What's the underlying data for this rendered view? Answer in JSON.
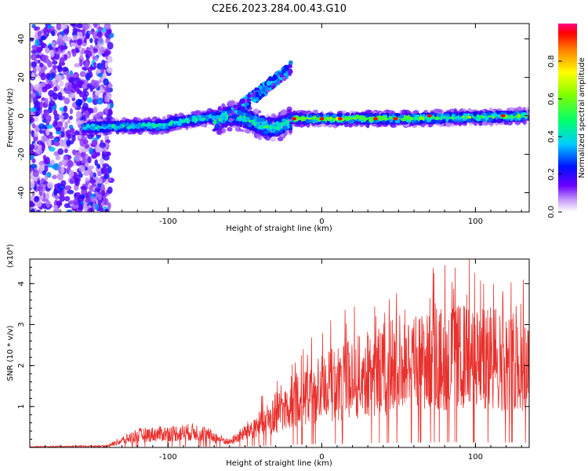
{
  "title": "C2E6.2023.284.00.43.G10",
  "colorbar": {
    "label": "Normalized spectral amplitude",
    "ticks": [
      "0.0",
      "0.2",
      "0.4",
      "0.6",
      "0.8"
    ]
  },
  "chart_data": [
    {
      "type": "heatmap",
      "name": "spectrogram",
      "xlabel": "Height of straight line (km)",
      "ylabel": "Frequency (Hz)",
      "xlim": [
        -190,
        135
      ],
      "ylim": [
        -50,
        48
      ],
      "x_ticks": [
        "-100",
        "0",
        "100"
      ],
      "y_ticks": [
        "-40",
        "-20",
        "0",
        "20",
        "40"
      ],
      "colormap_range": [
        0,
        1
      ],
      "features": [
        {
          "description": "broadband noise region",
          "x_range": [
            -190,
            -137
          ],
          "y_range": [
            -50,
            48
          ],
          "amplitude": 0.25
        },
        {
          "description": "main signal band",
          "x_range": [
            -155,
            135
          ],
          "center_frequency": [
            -6,
            0
          ],
          "amplitude_peak": 1.0
        },
        {
          "description": "rising branch",
          "x_range": [
            -60,
            -20
          ],
          "y_range": [
            0,
            25
          ],
          "amplitude": 0.3
        }
      ]
    },
    {
      "type": "line",
      "name": "snr",
      "xlabel": "Height of straight line (km)",
      "ylabel": "SNR (10 * v/v)",
      "yscale_label": "(x10⁴)",
      "xlim": [
        -190,
        135
      ],
      "ylim": [
        0,
        4.6
      ],
      "x_ticks": [
        "-100",
        "0",
        "100"
      ],
      "y_ticks": [
        "1",
        "2",
        "3",
        "4"
      ],
      "color": "#e8302c",
      "envelope": [
        {
          "x": -190,
          "y": 0.02
        },
        {
          "x": -140,
          "y": 0.04
        },
        {
          "x": -120,
          "y": 0.35
        },
        {
          "x": -80,
          "y": 0.45
        },
        {
          "x": -60,
          "y": 0.15
        },
        {
          "x": -40,
          "y": 0.7
        },
        {
          "x": -20,
          "y": 1.2
        },
        {
          "x": 0,
          "y": 1.7
        },
        {
          "x": 30,
          "y": 2.1
        },
        {
          "x": 60,
          "y": 2.4
        },
        {
          "x": 90,
          "y": 2.6
        },
        {
          "x": 110,
          "y": 2.5
        },
        {
          "x": 135,
          "y": 2.4
        }
      ],
      "peak": {
        "x": 96,
        "y": 4.6
      }
    }
  ]
}
